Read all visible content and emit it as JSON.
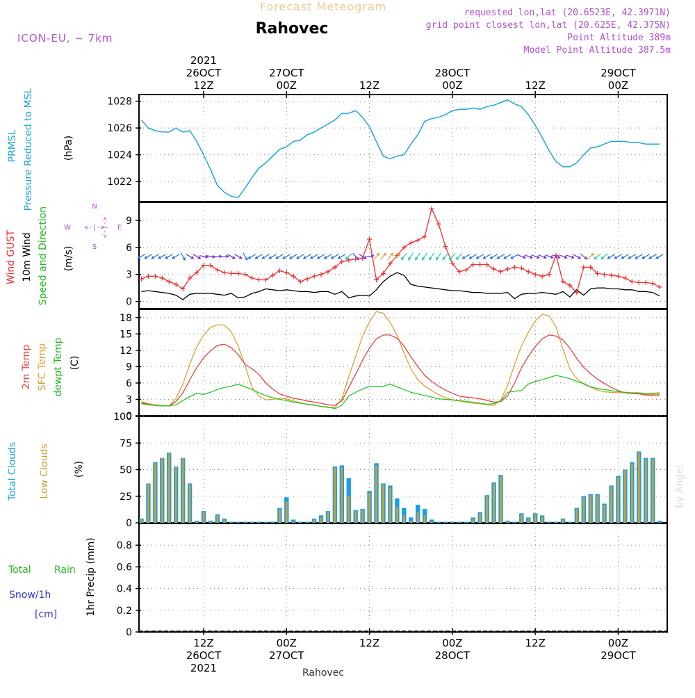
{
  "header": {
    "title_faint": "Forecast Meteogram",
    "location": "Rahovec",
    "model": "ICON-EU, ~ 7km",
    "requested": "requested lon,lat (20.6523E, 42.3971N)",
    "grid_point": "grid point closest lon,lat (20.625E, 42.375N)",
    "point_alt": "Point Altitude 389m",
    "model_alt": "Model Point Altitude 387.5m",
    "footer_location": "Rahovec",
    "watermark": "by Angel"
  },
  "colors": {
    "pressure": "#1ca3e0",
    "gust": "#ee3030",
    "wind": "#000000",
    "t2m": "#e84040",
    "sfc": "#e0a030",
    "dewpt": "#22c822",
    "total_clouds": "#1a9ee8",
    "low_clouds": "#d0a030",
    "violet": "#b050d0",
    "blue_text": "#3030e0",
    "green_text": "#22b822"
  },
  "time_axis": {
    "top": [
      {
        "t": 9,
        "lines": [
          "2021",
          "26OCT",
          "12Z"
        ]
      },
      {
        "t": 21,
        "lines": [
          "27OCT",
          "00Z"
        ]
      },
      {
        "t": 33,
        "lines": [
          "12Z"
        ]
      },
      {
        "t": 45,
        "lines": [
          "28OCT",
          "00Z"
        ]
      },
      {
        "t": 57,
        "lines": [
          "12Z"
        ]
      },
      {
        "t": 69,
        "lines": [
          "29OCT",
          "00Z"
        ]
      }
    ],
    "bottom": [
      {
        "t": 9,
        "lines": [
          "12Z",
          "26OCT",
          "2021"
        ]
      },
      {
        "t": 21,
        "lines": [
          "00Z",
          "27OCT"
        ]
      },
      {
        "t": 33,
        "lines": [
          "12Z"
        ]
      },
      {
        "t": 45,
        "lines": [
          "00Z",
          "28OCT"
        ]
      },
      {
        "t": 57,
        "lines": [
          "12Z"
        ]
      },
      {
        "t": 69,
        "lines": [
          "00Z",
          "29OCT"
        ]
      }
    ]
  },
  "panel_labels": {
    "pressure": [
      "PRMSL",
      "Pressure Reduced to MSL",
      "(hPa)"
    ],
    "wind": [
      "Wind GUST",
      "10m Wind",
      "Speed and Direction",
      "(m/s)"
    ],
    "compass": {
      "n": "N",
      "s": "S",
      "w": "W",
      "e": "E"
    },
    "temp": [
      "2m Temp",
      "SFC Temp",
      "dewpt Temp",
      "(C)"
    ],
    "clouds": [
      "Total Clouds",
      "Low Clouds",
      "(%)"
    ],
    "precip": [
      "Total",
      "Rain",
      "Snow/1h",
      "[cm]",
      "1hr Precip (mm)"
    ]
  },
  "chart_data": [
    {
      "type": "line",
      "title": "PRMSL Pressure Reduced to MSL",
      "ylabel": "(hPa)",
      "ylim": [
        1020.5,
        1028.5
      ],
      "yticks": [
        1022,
        1024,
        1026,
        1028
      ],
      "series": [
        {
          "name": "PRMSL",
          "x": [
            0,
            1,
            2,
            3,
            4,
            5,
            6,
            7,
            8,
            9,
            10,
            11,
            12,
            13,
            14,
            15,
            16,
            17,
            18,
            19,
            20,
            21,
            22,
            23,
            24,
            25,
            26,
            27,
            28,
            29,
            30,
            31,
            32,
            33,
            34,
            35,
            36,
            37,
            38,
            39,
            40,
            41,
            42,
            43,
            44,
            45,
            46,
            47,
            48,
            49,
            50,
            51,
            52,
            53,
            54,
            55,
            56,
            57,
            58,
            59,
            60,
            61,
            62,
            63,
            64,
            65,
            66,
            67,
            68,
            69,
            70,
            71,
            72,
            73,
            74,
            75
          ],
          "values": [
            1026.6,
            1026.0,
            1025.8,
            1025.7,
            1025.7,
            1026.0,
            1025.7,
            1025.8,
            1025.0,
            1024.0,
            1022.9,
            1021.7,
            1021.2,
            1020.9,
            1020.8,
            1021.5,
            1022.3,
            1023.0,
            1023.4,
            1023.9,
            1024.4,
            1024.6,
            1025.0,
            1025.1,
            1025.5,
            1025.7,
            1026.0,
            1026.3,
            1026.6,
            1027.1,
            1027.1,
            1027.3,
            1026.8,
            1026.1,
            1025.0,
            1023.9,
            1023.7,
            1023.9,
            1024.0,
            1024.8,
            1025.5,
            1026.5,
            1026.7,
            1026.8,
            1027.0,
            1027.3,
            1027.4,
            1027.4,
            1027.5,
            1027.4,
            1027.6,
            1027.7,
            1027.9,
            1028.1,
            1027.8,
            1027.6,
            1027.0,
            1026.2,
            1025.3,
            1024.3,
            1023.5,
            1023.1,
            1023.1,
            1023.4,
            1024.0,
            1024.5,
            1024.6,
            1024.8,
            1025.0,
            1025.0,
            1025.0,
            1024.9,
            1024.9,
            1024.8,
            1024.8,
            1024.8
          ]
        }
      ]
    },
    {
      "type": "line",
      "title": "Wind GUST / 10m Wind Speed and Direction",
      "ylabel": "(m/s)",
      "ylim": [
        -0.8,
        11.0
      ],
      "yticks": [
        0,
        3,
        6,
        9
      ],
      "series": [
        {
          "name": "Wind GUST",
          "values": [
            2.5,
            2.8,
            2.8,
            2.6,
            2.2,
            1.9,
            1.4,
            2.6,
            3.2,
            4.0,
            4.0,
            3.5,
            3.2,
            3.1,
            3.1,
            3.0,
            2.6,
            2.4,
            2.4,
            2.9,
            3.4,
            3.2,
            2.8,
            2.2,
            2.5,
            2.8,
            3.0,
            3.3,
            3.8,
            4.4,
            4.6,
            4.7,
            4.8,
            6.9,
            2.4,
            3.1,
            4.2,
            5.1,
            6.0,
            6.5,
            6.8,
            7.2,
            10.3,
            8.6,
            6.1,
            4.2,
            3.3,
            3.5,
            4.1,
            4.1,
            4.1,
            3.6,
            3.3,
            3.6,
            3.8,
            3.7,
            3.3,
            3.0,
            2.8,
            3.0,
            5.1,
            2.2,
            1.8,
            1.0,
            3.8,
            3.8,
            3.1,
            3.0,
            2.9,
            2.8,
            2.6,
            2.2,
            2.1,
            2.1,
            2.0,
            1.6
          ]
        },
        {
          "name": "10m Wind",
          "values": [
            1.1,
            1.2,
            1.1,
            1.0,
            0.9,
            0.7,
            0.2,
            0.8,
            0.9,
            0.9,
            0.9,
            0.8,
            0.7,
            0.9,
            0.4,
            0.5,
            0.9,
            1.1,
            1.4,
            1.3,
            1.2,
            1.3,
            1.2,
            1.1,
            1.1,
            1.0,
            1.1,
            1.1,
            0.8,
            1.1,
            0.4,
            0.6,
            0.7,
            0.6,
            1.3,
            2.2,
            2.8,
            3.2,
            2.9,
            1.9,
            1.7,
            1.6,
            1.5,
            1.4,
            1.3,
            1.2,
            1.2,
            1.1,
            1.0,
            1.0,
            0.9,
            0.9,
            0.9,
            1.0,
            0.3,
            0.8,
            0.9,
            0.9,
            1.0,
            0.9,
            0.8,
            1.1,
            0.5,
            1.3,
            0.7,
            1.4,
            1.5,
            1.5,
            1.4,
            1.4,
            1.3,
            1.3,
            1.1,
            1.1,
            1.0,
            0.6
          ]
        },
        {
          "name": "Wind Direction (deg, from)",
          "values": [
            60,
            60,
            60,
            60,
            60,
            60,
            330,
            300,
            300,
            280,
            280,
            270,
            270,
            300,
            300,
            330,
            60,
            60,
            60,
            60,
            60,
            60,
            60,
            60,
            60,
            60,
            60,
            60,
            60,
            60,
            50,
            320,
            300,
            260,
            220,
            220,
            220,
            225,
            40,
            35,
            35,
            35,
            35,
            35,
            40,
            45,
            45,
            60,
            60,
            60,
            60,
            60,
            60,
            60,
            60,
            290,
            290,
            290,
            290,
            290,
            290,
            290,
            290,
            300,
            310,
            230,
            50,
            50,
            60,
            60,
            60,
            60,
            60,
            60,
            60,
            60
          ]
        }
      ]
    },
    {
      "type": "line",
      "title": "2m Temp / SFC Temp / dewpt Temp",
      "ylabel": "(C)",
      "ylim": [
        0,
        19.5
      ],
      "yticks": [
        0,
        3,
        6,
        9,
        12,
        15,
        18
      ],
      "series": [
        {
          "name": "2m Temp",
          "values": [
            2.4,
            2.1,
            1.9,
            1.8,
            1.8,
            2.6,
            4.2,
            6.6,
            8.8,
            10.6,
            11.9,
            12.9,
            13.1,
            12.5,
            11.2,
            9.4,
            8.6,
            7.6,
            6.0,
            4.9,
            4.0,
            3.6,
            3.2,
            3.0,
            2.7,
            2.5,
            2.3,
            2.0,
            1.9,
            2.7,
            5.2,
            7.6,
            10.2,
            12.4,
            14.1,
            14.8,
            14.8,
            14.2,
            12.8,
            10.8,
            9.0,
            7.4,
            6.3,
            5.4,
            4.7,
            4.1,
            3.6,
            3.4,
            3.3,
            3.1,
            2.8,
            2.5,
            2.6,
            3.6,
            6.0,
            8.8,
            10.9,
            12.7,
            14.1,
            14.8,
            14.6,
            13.9,
            12.4,
            10.5,
            8.9,
            7.7,
            6.7,
            5.9,
            5.2,
            4.6,
            4.2,
            4.1,
            4.0,
            3.8,
            3.7,
            3.8
          ]
        },
        {
          "name": "SFC Temp",
          "values": [
            2.6,
            2.2,
            2.0,
            1.9,
            1.8,
            3.2,
            5.8,
            9.5,
            12.6,
            14.8,
            16.2,
            16.7,
            16.6,
            15.4,
            12.8,
            9.2,
            5.2,
            3.6,
            2.9,
            3.0,
            3.2,
            3.1,
            2.7,
            2.4,
            2.1,
            1.9,
            1.7,
            1.5,
            1.5,
            3.1,
            7.2,
            10.8,
            14.6,
            17.2,
            19.1,
            18.8,
            17.1,
            14.7,
            11.5,
            8.6,
            6.6,
            5.4,
            4.6,
            3.9,
            3.3,
            2.9,
            2.7,
            2.5,
            2.3,
            2.2,
            2.0,
            1.9,
            2.9,
            5.6,
            9.4,
            12.8,
            15.3,
            17.4,
            18.6,
            18.3,
            16.3,
            12.2,
            8.6,
            6.8,
            5.8,
            5.2,
            4.7,
            4.4,
            4.3,
            4.2,
            4.2,
            4.1,
            4.0,
            3.9,
            3.9,
            4.0
          ]
        },
        {
          "name": "dewpt Temp",
          "values": [
            2.2,
            2.0,
            1.9,
            1.8,
            1.8,
            2.0,
            2.8,
            3.5,
            4.1,
            3.9,
            4.3,
            4.8,
            5.2,
            5.4,
            5.8,
            5.3,
            4.8,
            4.2,
            3.7,
            3.3,
            3.0,
            2.8,
            2.5,
            2.3,
            2.1,
            2.0,
            1.7,
            1.6,
            1.3,
            1.9,
            3.6,
            4.3,
            4.9,
            5.4,
            5.4,
            5.4,
            5.8,
            5.3,
            4.8,
            4.3,
            4.0,
            3.7,
            3.4,
            3.1,
            3.0,
            2.9,
            2.8,
            2.6,
            2.5,
            2.3,
            2.1,
            2.2,
            2.7,
            4.3,
            4.5,
            4.6,
            5.8,
            6.3,
            6.6,
            7.0,
            7.4,
            7.1,
            6.8,
            6.3,
            5.9,
            5.3,
            5.0,
            4.8,
            4.6,
            4.4,
            4.3,
            4.2,
            4.2,
            4.1,
            4.1,
            4.2
          ]
        }
      ]
    },
    {
      "type": "bar",
      "title": "Total Clouds / Low Clouds",
      "ylabel": "(%)",
      "ylim": [
        0,
        100
      ],
      "yticks": [
        0,
        25,
        50,
        75,
        100
      ],
      "series": [
        {
          "name": "Total Clouds",
          "values": [
            4,
            37,
            57,
            61,
            66,
            53,
            61,
            37,
            2,
            11,
            2,
            8,
            4,
            1,
            1,
            1,
            1,
            1,
            1,
            1,
            14,
            24,
            3,
            1,
            1,
            4,
            7,
            11,
            53,
            54,
            42,
            12,
            13,
            30,
            56,
            37,
            35,
            23,
            14,
            5,
            17,
            13,
            3,
            1,
            1,
            1,
            1,
            1,
            5,
            10,
            26,
            38,
            45,
            2,
            1,
            9,
            5,
            9,
            7,
            1,
            1,
            4,
            1,
            14,
            25,
            27,
            27,
            18,
            35,
            44,
            50,
            57,
            67,
            61,
            61,
            2
          ]
        },
        {
          "name": "Low Clouds",
          "values": [
            4,
            37,
            56,
            61,
            65,
            53,
            61,
            36,
            1,
            10,
            1,
            7,
            3,
            0,
            0,
            0,
            0,
            0,
            0,
            0,
            13,
            20,
            1,
            0,
            0,
            3,
            5,
            10,
            52,
            52,
            25,
            11,
            12,
            28,
            54,
            36,
            33,
            15,
            7,
            2,
            10,
            7,
            1,
            0,
            0,
            0,
            0,
            0,
            4,
            9,
            25,
            37,
            44,
            1,
            0,
            8,
            4,
            8,
            6,
            0,
            0,
            3,
            0,
            13,
            24,
            26,
            26,
            17,
            34,
            43,
            49,
            56,
            66,
            60,
            60,
            0
          ]
        }
      ]
    },
    {
      "type": "bar",
      "title": "Total Rain Snow/1h [cm]",
      "ylabel": "1hr Precip (mm)",
      "ylim": [
        0,
        1.0
      ],
      "yticks": [
        0,
        0.2,
        0.4,
        0.6,
        0.8
      ],
      "series": [
        {
          "name": "Total Rain",
          "values": [
            0,
            0,
            0,
            0,
            0,
            0,
            0,
            0,
            0,
            0,
            0,
            0,
            0,
            0,
            0,
            0,
            0,
            0,
            0,
            0,
            0,
            0,
            0,
            0,
            0,
            0,
            0,
            0,
            0,
            0,
            0,
            0,
            0,
            0,
            0,
            0,
            0,
            0,
            0,
            0,
            0,
            0,
            0,
            0,
            0,
            0,
            0,
            0,
            0,
            0,
            0,
            0,
            0,
            0,
            0,
            0,
            0,
            0,
            0,
            0,
            0,
            0,
            0,
            0,
            0,
            0,
            0,
            0,
            0,
            0,
            0,
            0,
            0,
            0,
            0,
            0
          ]
        }
      ]
    }
  ]
}
